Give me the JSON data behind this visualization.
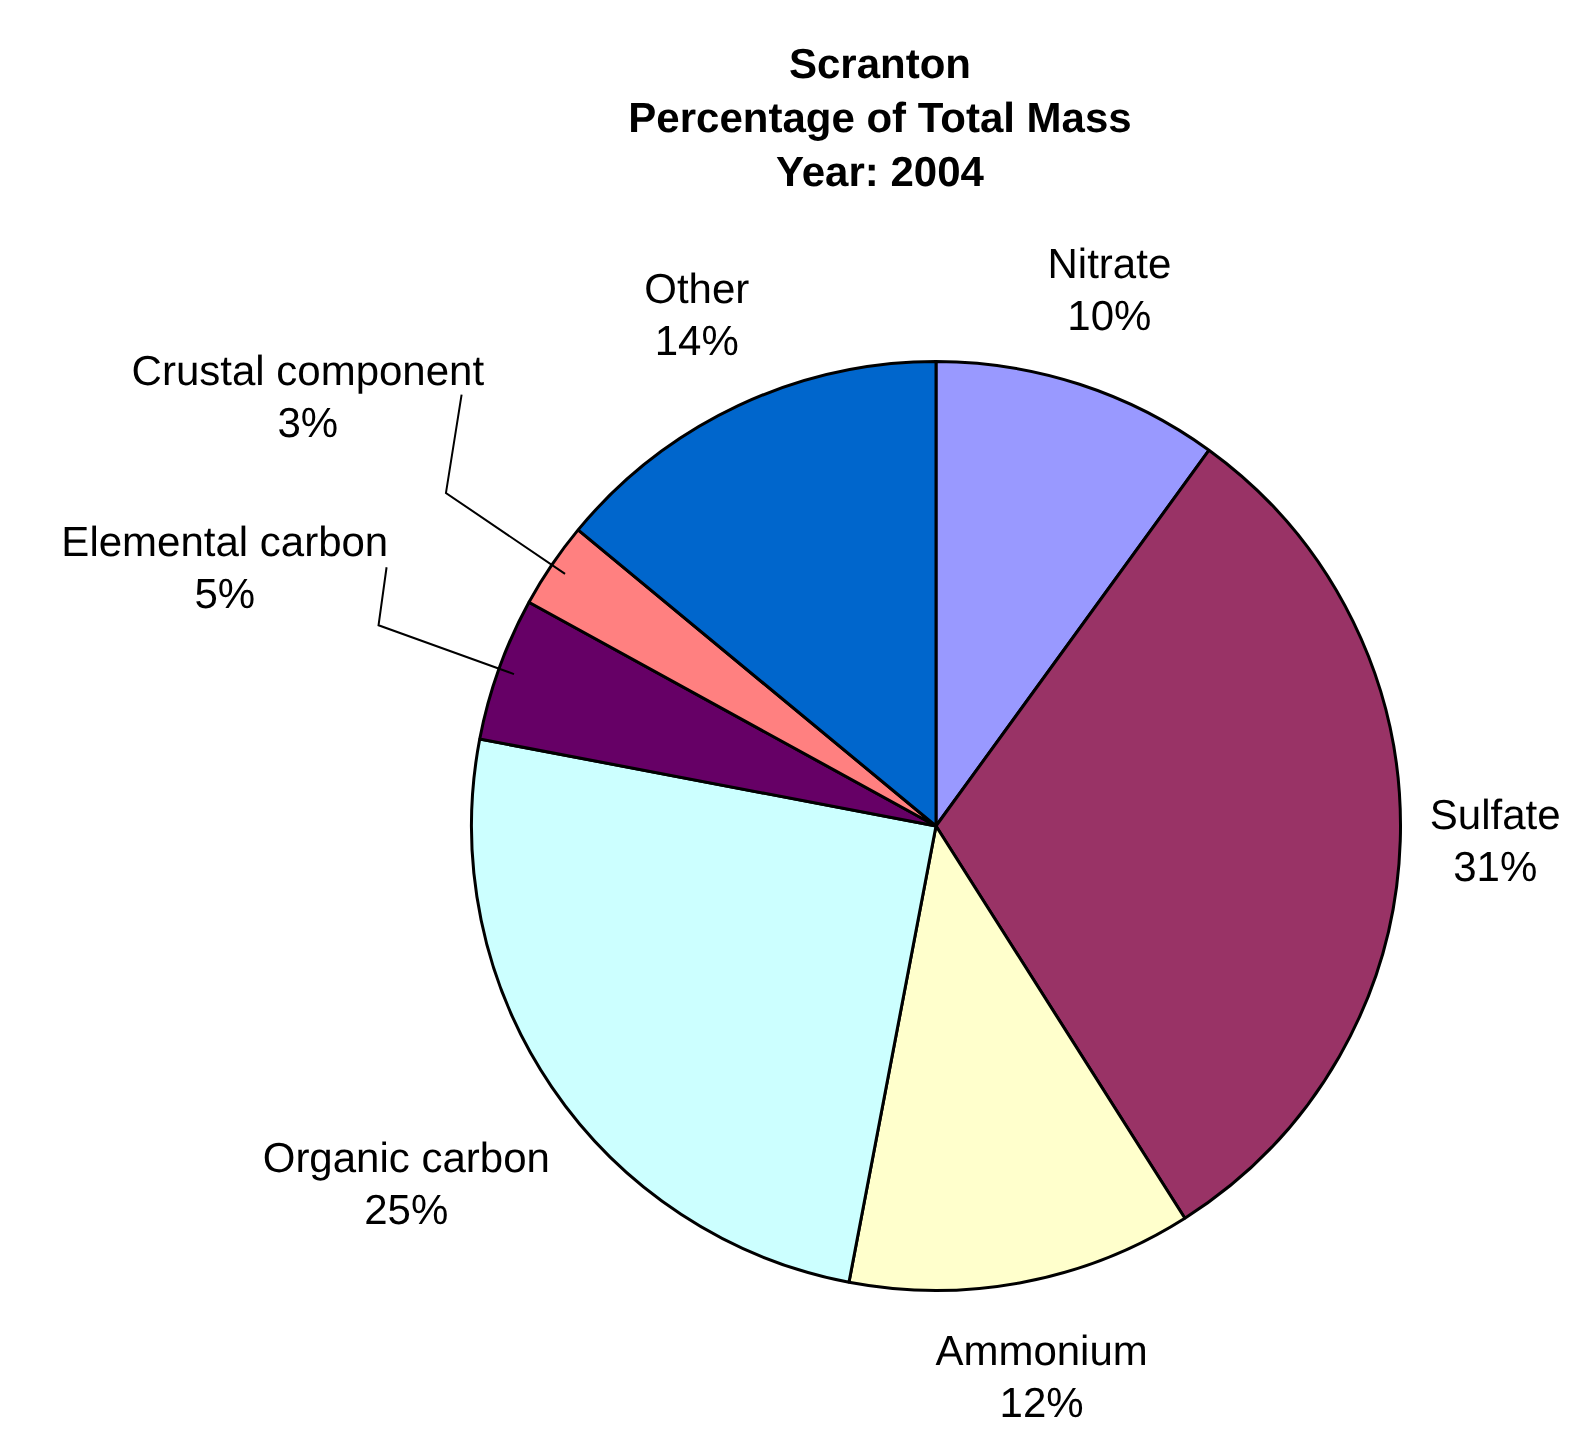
{
  "chart_data": {
    "type": "pie",
    "title": "Scranton\nPercentage of Total Mass\nYear: 2004",
    "categories": [
      "Nitrate",
      "Sulfate",
      "Ammonium",
      "Organic carbon",
      "Elemental carbon",
      "Crustal component",
      "Other"
    ],
    "values": [
      10,
      31,
      12,
      25,
      5,
      3,
      14
    ],
    "value_labels": [
      "10%",
      "31%",
      "12%",
      "25%",
      "5%",
      "3%",
      "14%"
    ],
    "colors": [
      "#9999ff",
      "#993366",
      "#ffffcc",
      "#ccffff",
      "#660066",
      "#ff8080",
      "#0066cc"
    ],
    "legend": false
  }
}
